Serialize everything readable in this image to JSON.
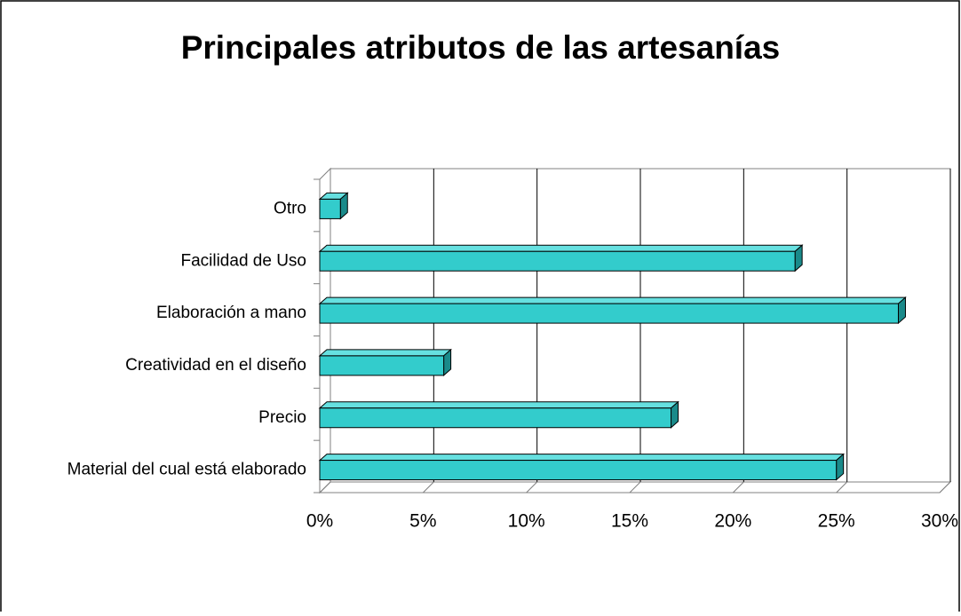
{
  "chart_data": {
    "type": "bar3d",
    "title": "Principales atributos de las artesanías",
    "categories": [
      "Material del cual está elaborado",
      "Precio",
      "Creatividad en el diseño",
      "Elaboración a mano",
      "Facilidad de Uso",
      "Otro"
    ],
    "values": [
      25,
      17,
      6,
      28,
      23,
      1
    ],
    "color": "#33cccc",
    "xlim": [
      0,
      30
    ],
    "xticks": [
      {
        "value": 0,
        "label": "0%"
      },
      {
        "value": 5,
        "label": "5%"
      },
      {
        "value": 10,
        "label": "10%"
      },
      {
        "value": 15,
        "label": "15%"
      },
      {
        "value": 20,
        "label": "20%"
      },
      {
        "value": 25,
        "label": "25%"
      },
      {
        "value": 30,
        "label": "30%"
      }
    ],
    "grid": true
  }
}
